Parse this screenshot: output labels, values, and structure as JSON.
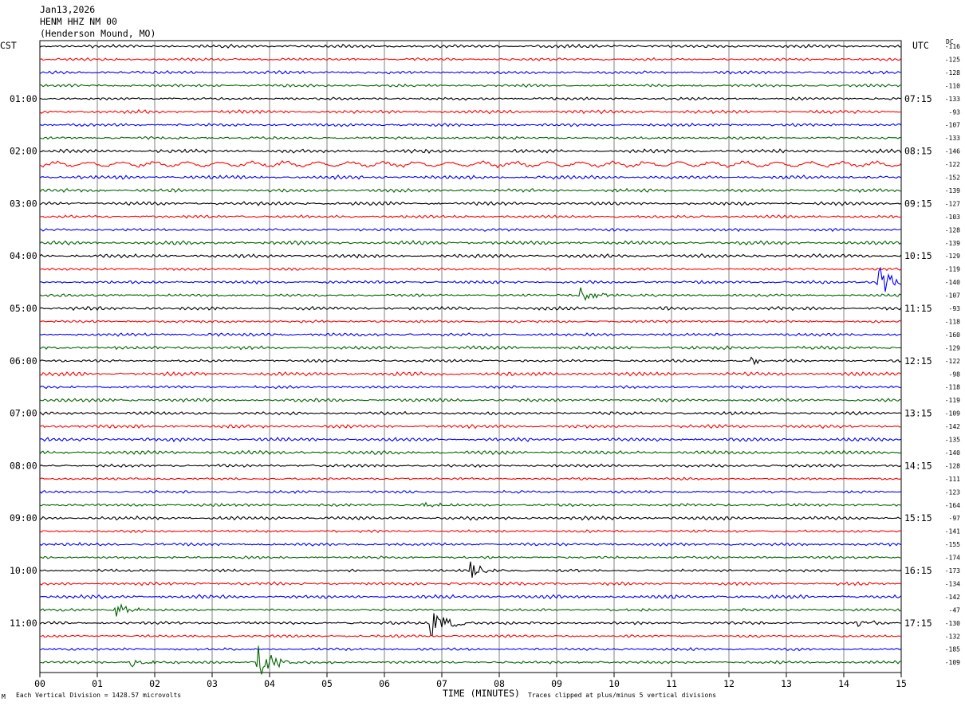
{
  "header": {
    "date": "Jan13,2026",
    "station": "HENM HHZ NM 00",
    "location": "(Henderson Mound, MO)"
  },
  "footer": {
    "scale_note": "Each Vertical Division = 1428.57 microvolts",
    "clip_note": "Traces clipped at plus/minus 5 vertical divisions",
    "logo_mark": "M"
  },
  "chart_data": {
    "type": "line",
    "title": "",
    "xlabel": "TIME (MINUTES)",
    "xlim": [
      0,
      15
    ],
    "x_ticks": [
      "00",
      "01",
      "02",
      "03",
      "04",
      "05",
      "06",
      "07",
      "08",
      "09",
      "10",
      "11",
      "12",
      "13",
      "14",
      "15"
    ],
    "left_axis_label": "CST",
    "right_axis_label": "UTC",
    "dc_label": "DC",
    "trace_count": 48,
    "trace_colors": [
      "#000000",
      "#ff0000",
      "#0000ff",
      "#006400"
    ],
    "left_hour_labels": [
      {
        "trace": 4,
        "label": "01:00"
      },
      {
        "trace": 8,
        "label": "02:00"
      },
      {
        "trace": 12,
        "label": "03:00"
      },
      {
        "trace": 16,
        "label": "04:00"
      },
      {
        "trace": 20,
        "label": "05:00"
      },
      {
        "trace": 24,
        "label": "06:00"
      },
      {
        "trace": 28,
        "label": "07:00"
      },
      {
        "trace": 32,
        "label": "08:00"
      },
      {
        "trace": 36,
        "label": "09:00"
      },
      {
        "trace": 40,
        "label": "10:00"
      },
      {
        "trace": 44,
        "label": "11:00"
      }
    ],
    "right_hour_labels": [
      {
        "trace": 4,
        "label": "07:15"
      },
      {
        "trace": 8,
        "label": "08:15"
      },
      {
        "trace": 12,
        "label": "09:15"
      },
      {
        "trace": 16,
        "label": "10:15"
      },
      {
        "trace": 20,
        "label": "11:15"
      },
      {
        "trace": 24,
        "label": "12:15"
      },
      {
        "trace": 28,
        "label": "13:15"
      },
      {
        "trace": 32,
        "label": "14:15"
      },
      {
        "trace": 36,
        "label": "15:15"
      },
      {
        "trace": 40,
        "label": "16:15"
      },
      {
        "trace": 44,
        "label": "17:15"
      }
    ],
    "dc_offsets": [
      "-116",
      "-125",
      "-128",
      "-110",
      "-133",
      "-93",
      "-107",
      "-133",
      "-146",
      "-122",
      "-152",
      "-139",
      "-127",
      "-103",
      "-128",
      "-139",
      "-129",
      "-119",
      "-140",
      "-107",
      "-93",
      "-118",
      "-160",
      "-129",
      "-122",
      "-98",
      "-118",
      "-119",
      "-109",
      "-142",
      "-135",
      "-140",
      "-128",
      "-111",
      "-123",
      "-164",
      "-97",
      "-141",
      "-155",
      "-174",
      "-173",
      "-134",
      "-142",
      "-47",
      "-130",
      "-132",
      "-185",
      "-109"
    ],
    "events": [
      {
        "trace": 18,
        "minute": 14.6,
        "amplitude": "large"
      },
      {
        "trace": 19,
        "minute": 9.4,
        "amplitude": "medium"
      },
      {
        "trace": 24,
        "minute": 12.4,
        "amplitude": "small"
      },
      {
        "trace": 35,
        "minute": 6.7,
        "amplitude": "small"
      },
      {
        "trace": 40,
        "minute": 7.5,
        "amplitude": "medium"
      },
      {
        "trace": 43,
        "minute": 1.3,
        "amplitude": "medium"
      },
      {
        "trace": 44,
        "minute": 6.8,
        "amplitude": "large"
      },
      {
        "trace": 44,
        "minute": 14.2,
        "amplitude": "small"
      },
      {
        "trace": 47,
        "minute": 3.8,
        "amplitude": "large"
      },
      {
        "trace": 47,
        "minute": 1.6,
        "amplitude": "small"
      }
    ]
  }
}
